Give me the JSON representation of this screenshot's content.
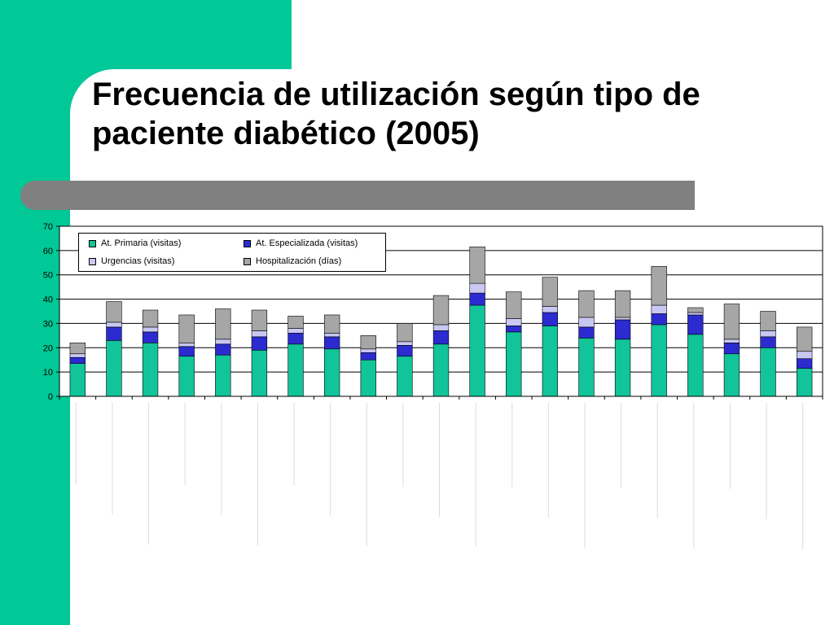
{
  "title": "Frecuencia de utilización según tipo de paciente diabético (2005)",
  "colors": {
    "green": "#00c896",
    "primaria": "#12c49a",
    "especializada": "#2b2bd0",
    "urgencias": "#c8c8f2",
    "hospitalizacion": "#a6a6a6",
    "title_bar": "#808080"
  },
  "chart_data": {
    "type": "bar",
    "stacked": true,
    "ylim": [
      0,
      70
    ],
    "yticks": [
      "0",
      "10",
      "20",
      "30",
      "40",
      "50",
      "60",
      "70"
    ],
    "grid": true,
    "legend_position": "top-left",
    "categories": [
      "",
      "",
      "",
      "",
      "",
      "",
      "",
      "",
      "",
      "",
      "",
      "",
      "",
      "",
      "",
      "",
      "",
      "",
      "",
      "",
      ""
    ],
    "series": [
      {
        "name": "At. Primaria (visitas)",
        "values": [
          13.5,
          23.0,
          22.0,
          16.5,
          17.0,
          19.0,
          21.5,
          19.5,
          15.0,
          16.5,
          21.5,
          37.5,
          26.5,
          29.0,
          24.0,
          23.5,
          29.5,
          25.5,
          17.5,
          20.0,
          11.5
        ]
      },
      {
        "name": "At. Especializada (visitas)",
        "values": [
          2.5,
          5.5,
          4.5,
          4.0,
          4.5,
          5.5,
          4.5,
          5.0,
          3.0,
          4.5,
          5.5,
          5.0,
          2.5,
          5.5,
          4.5,
          8.0,
          4.5,
          8.0,
          4.5,
          4.5,
          4.0
        ]
      },
      {
        "name": "Urgencias (visitas)",
        "values": [
          1.5,
          2.0,
          2.0,
          1.5,
          2.0,
          2.5,
          2.0,
          1.5,
          1.5,
          1.5,
          2.5,
          4.0,
          3.0,
          2.5,
          4.0,
          1.0,
          3.5,
          1.0,
          1.5,
          2.5,
          3.0
        ]
      },
      {
        "name": "Hospitalización (días)",
        "values": [
          4.5,
          8.5,
          7.0,
          11.5,
          12.5,
          8.5,
          5.0,
          7.5,
          5.5,
          7.5,
          12.0,
          15.0,
          11.0,
          12.0,
          11.0,
          11.0,
          16.0,
          2.0,
          14.5,
          8.0,
          10.0
        ]
      }
    ]
  }
}
